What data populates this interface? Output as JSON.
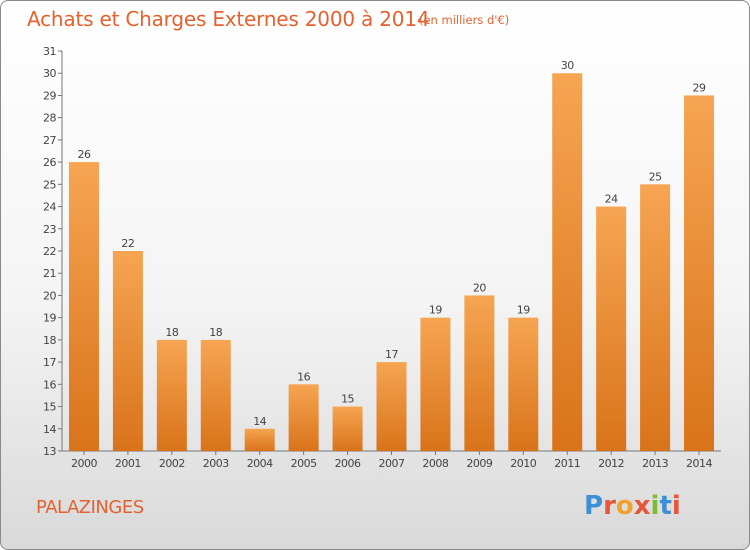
{
  "title": "Achats et Charges Externes 2000 à 2014",
  "subtitle": "(en milliers d'€)",
  "commune": "PALAZINGES",
  "logo": {
    "text": "Proxiti",
    "colors": [
      "#3b8fd6",
      "#e8563a",
      "#f2a12e",
      "#e8563a",
      "#7bbd2f",
      "#3b8fd6",
      "#e8563a"
    ]
  },
  "colors": {
    "bar_top": "#f6a552",
    "bar_bottom": "#d9731a",
    "accent": "#e3622f"
  },
  "chart_data": {
    "type": "bar",
    "categories": [
      "2000",
      "2001",
      "2002",
      "2003",
      "2004",
      "2005",
      "2006",
      "2007",
      "2008",
      "2009",
      "2010",
      "2011",
      "2012",
      "2013",
      "2014"
    ],
    "values": [
      26,
      22,
      18,
      18,
      14,
      16,
      15,
      17,
      19,
      20,
      19,
      30,
      24,
      25,
      29
    ],
    "ylim": [
      13,
      31
    ],
    "yticks": [
      13,
      14,
      15,
      16,
      17,
      18,
      19,
      20,
      21,
      22,
      23,
      24,
      25,
      26,
      27,
      28,
      29,
      30,
      31
    ],
    "grid": false,
    "legend": "none"
  }
}
